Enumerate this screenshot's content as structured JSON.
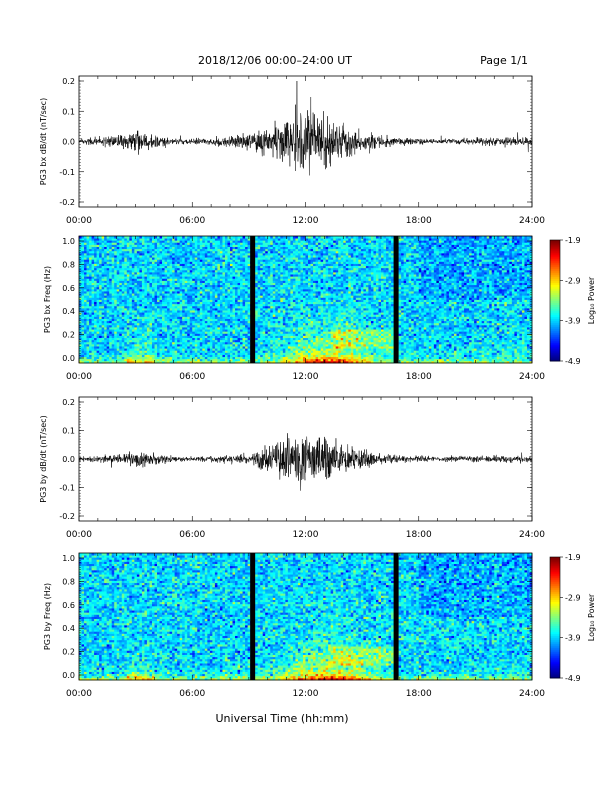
{
  "header": {
    "title": "2018/12/06  00:00–24:00 UT",
    "page": "Page 1/1"
  },
  "xaxis": {
    "label": "Universal Time (hh:mm)",
    "ticks": [
      "00:00",
      "06:00",
      "12:00",
      "18:00",
      "24:00"
    ],
    "range_hours": [
      0,
      24
    ]
  },
  "colorbar": {
    "label": "Log₁₀ Power",
    "ticks": [
      "-1.9",
      "-2.9",
      "-3.9",
      "-4.9"
    ],
    "range": [
      -4.9,
      -1.9
    ]
  },
  "chart_data": [
    {
      "type": "line",
      "ylabel": "PG3 bx dB/dt (nT/sec)",
      "yticks": [
        "0.2",
        "0.1",
        "0.0",
        "-0.1",
        "-0.2"
      ],
      "ylim": [
        -0.2,
        0.2
      ],
      "x": [
        0,
        1,
        2,
        3,
        4,
        5,
        6,
        7,
        8,
        9,
        10,
        11,
        12,
        13,
        14,
        15,
        16,
        17,
        18,
        19,
        20,
        21,
        22,
        23,
        24
      ],
      "amplitude": [
        0.005,
        0.008,
        0.012,
        0.02,
        0.012,
        0.006,
        0.005,
        0.008,
        0.01,
        0.02,
        0.028,
        0.045,
        0.07,
        0.055,
        0.035,
        0.02,
        0.012,
        0.008,
        0.006,
        0.005,
        0.006,
        0.007,
        0.008,
        0.01,
        0.008
      ],
      "grid": false
    },
    {
      "type": "heatmap",
      "ylabel": "PG3 bx Freq (Hz)",
      "yticks": [
        "1.0",
        "0.8",
        "0.6",
        "0.4",
        "0.2",
        "0.0"
      ],
      "ylim": [
        0.0,
        1.0
      ],
      "xlim": [
        0,
        24
      ],
      "gaps_hours": [
        9.2,
        16.8
      ]
    },
    {
      "type": "line",
      "ylabel": "PG3 by dB/dt (nT/sec)",
      "yticks": [
        "0.2",
        "0.1",
        "0.0",
        "-0.1",
        "-0.2"
      ],
      "ylim": [
        -0.2,
        0.2
      ],
      "x": [
        0,
        1,
        2,
        3,
        4,
        5,
        6,
        7,
        8,
        9,
        10,
        11,
        12,
        13,
        14,
        15,
        16,
        17,
        18,
        19,
        20,
        21,
        22,
        23,
        24
      ],
      "amplitude": [
        0.004,
        0.006,
        0.01,
        0.018,
        0.012,
        0.006,
        0.005,
        0.006,
        0.008,
        0.01,
        0.025,
        0.045,
        0.06,
        0.045,
        0.03,
        0.018,
        0.01,
        0.008,
        0.006,
        0.005,
        0.006,
        0.007,
        0.008,
        0.008,
        0.007
      ],
      "grid": false
    },
    {
      "type": "heatmap",
      "ylabel": "PG3 by Freq (Hz)",
      "yticks": [
        "1.0",
        "0.8",
        "0.6",
        "0.4",
        "0.2",
        "0.0"
      ],
      "ylim": [
        0.0,
        1.0
      ],
      "xlim": [
        0,
        24
      ],
      "gaps_hours": [
        9.2,
        16.8
      ]
    }
  ]
}
